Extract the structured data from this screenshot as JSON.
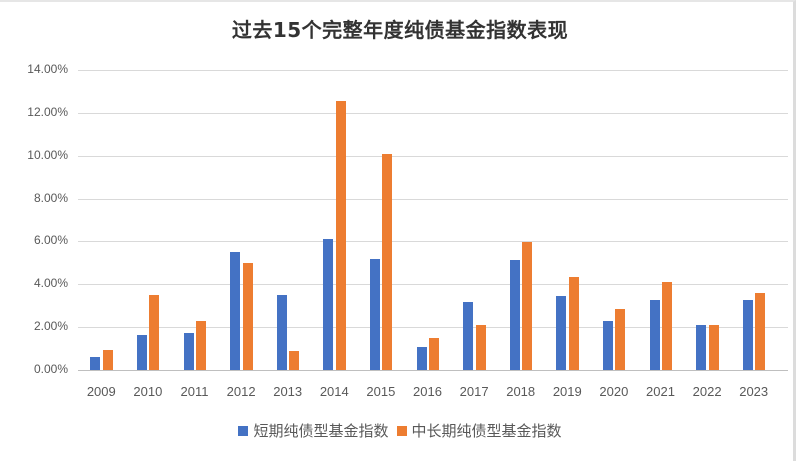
{
  "chart_data": {
    "type": "bar",
    "title": "过去15个完整年度纯债基金指数表现",
    "xlabel": "",
    "ylabel": "",
    "ylim": [
      0,
      0.14
    ],
    "yticks": [
      "0.00%",
      "2.00%",
      "4.00%",
      "6.00%",
      "8.00%",
      "10.00%",
      "12.00%",
      "14.00%"
    ],
    "grid": true,
    "legend_position": "bottom",
    "categories": [
      "2009",
      "2010",
      "2011",
      "2012",
      "2013",
      "2014",
      "2015",
      "2016",
      "2017",
      "2018",
      "2019",
      "2020",
      "2021",
      "2022",
      "2023"
    ],
    "series": [
      {
        "name": "短期纯债型基金指数",
        "color": "#4472C4",
        "values": [
          0.62,
          1.64,
          1.72,
          5.51,
          3.5,
          6.11,
          5.17,
          1.09,
          3.19,
          5.15,
          3.46,
          2.3,
          3.25,
          2.1,
          3.25
        ]
      },
      {
        "name": "中长期纯债型基金指数",
        "color": "#ED7D31",
        "values": [
          0.95,
          3.51,
          2.31,
          4.98,
          0.87,
          12.57,
          10.08,
          1.5,
          2.1,
          5.96,
          4.33,
          2.85,
          4.11,
          2.1,
          3.59
        ]
      }
    ],
    "value_unit": "%"
  }
}
